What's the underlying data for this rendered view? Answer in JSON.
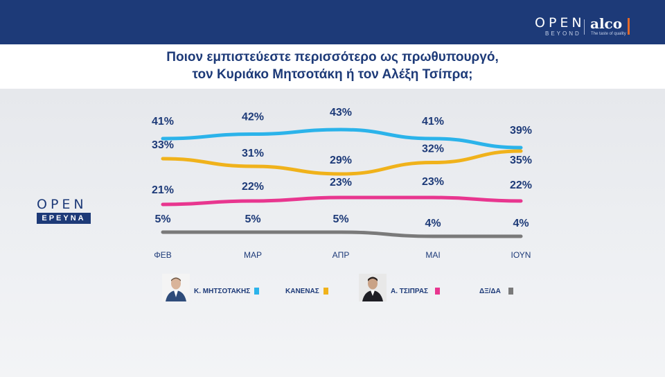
{
  "header": {
    "brand_open": "OPEN",
    "brand_beyond": "BEYOND",
    "brand_alco": "alco",
    "brand_alco_tag": "The taste of quality"
  },
  "title": {
    "line1": "Ποιον εμπιστεύεστε περισσότερο ως πρωθυπουργό,",
    "line2": "τον Κυριάκο Μητσοτάκη ή τον Αλέξη Τσίπρα;"
  },
  "side_logo": {
    "word": "OPEN",
    "sub": "ΕΡΕΥΝΑ"
  },
  "legend": {
    "mitsotakis": "Κ. ΜΗΤΣΟΤΑΚΗΣ",
    "kanenas": "ΚΑΝΕΝΑΣ",
    "tsipras": "Α. ΤΣΙΠΡΑΣ",
    "dk": "ΔΞ/ΔΑ"
  },
  "chart_data": {
    "type": "line",
    "categories": [
      "ΦΕΒ",
      "ΜΑΡ",
      "ΑΠΡ",
      "ΜΑΙ",
      "ΙΟΥΝ"
    ],
    "series": [
      {
        "name": "Κ. ΜΗΤΣΟΤΑΚΗΣ",
        "color": "#2bb3ea",
        "values": [
          41,
          42,
          43,
          41,
          39
        ]
      },
      {
        "name": "ΚΑΝΕΝΑΣ",
        "color": "#f0b21b",
        "values": [
          33,
          31,
          29,
          32,
          35
        ]
      },
      {
        "name": "Α. ΤΣΙΠΡΑΣ",
        "color": "#e8368f",
        "values": [
          21,
          22,
          23,
          23,
          22
        ]
      },
      {
        "name": "ΔΞ/ΔΑ",
        "color": "#7a7a7a",
        "values": [
          5,
          5,
          5,
          4,
          4
        ]
      }
    ],
    "data_labels": [
      [
        "41%",
        "42%",
        "43%",
        "41%",
        "39%"
      ],
      [
        "33%",
        "31%",
        "29%",
        "32%",
        "35%"
      ],
      [
        "21%",
        "22%",
        "23%",
        "23%",
        "22%"
      ],
      [
        "5%",
        "5%",
        "5%",
        "4%",
        "4%"
      ]
    ],
    "legend_position": "bottom",
    "grid": false
  },
  "colors": {
    "brand_blue": "#1d3a78",
    "mitsotakis": "#2bb3ea",
    "kanenas": "#f0b21b",
    "tsipras": "#e8368f",
    "dk": "#7a7a7a",
    "accent_orange": "#e46a2a"
  }
}
